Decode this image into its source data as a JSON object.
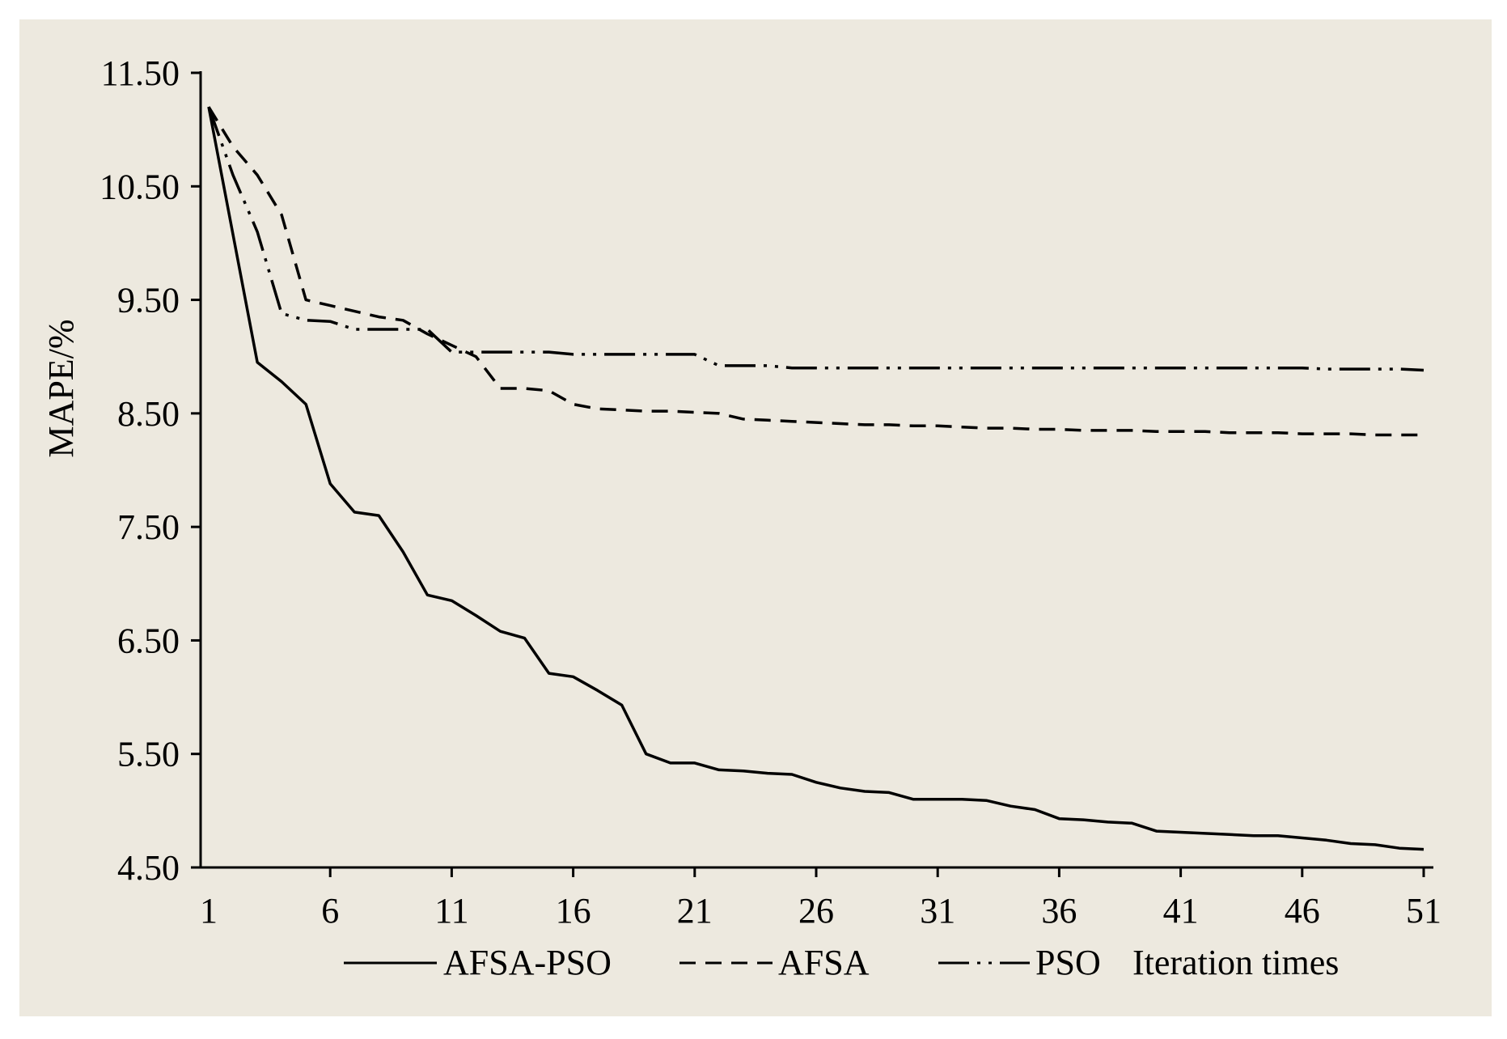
{
  "chart_data": {
    "type": "line",
    "title": "",
    "xlabel": "Iteration times",
    "ylabel": "MAPE/%",
    "ylim": [
      4.5,
      11.5
    ],
    "xlim": [
      1,
      51
    ],
    "yticks": [
      "4.50",
      "5.50",
      "6.50",
      "7.50",
      "8.50",
      "9.50",
      "10.50",
      "11.50"
    ],
    "xticks": [
      "1",
      "6",
      "11",
      "16",
      "21",
      "26",
      "31",
      "36",
      "41",
      "46",
      "51"
    ],
    "grid": false,
    "legend_position": "bottom",
    "series": [
      {
        "name": "AFSA-PSO",
        "style": "solid",
        "x": [
          1,
          3,
          4,
          5,
          6,
          7,
          8,
          9,
          10,
          11,
          12,
          13,
          14,
          15,
          16,
          17,
          18,
          19,
          20,
          21,
          22,
          23,
          24,
          25,
          26,
          27,
          28,
          29,
          30,
          31,
          32,
          33,
          34,
          35,
          36,
          37,
          38,
          39,
          40,
          41,
          42,
          43,
          44,
          45,
          46,
          47,
          48,
          49,
          50,
          51
        ],
        "values": [
          11.2,
          8.95,
          8.78,
          8.58,
          7.88,
          7.63,
          7.6,
          7.28,
          6.9,
          6.85,
          6.72,
          6.58,
          6.52,
          6.21,
          6.18,
          6.06,
          5.93,
          5.5,
          5.42,
          5.42,
          5.36,
          5.35,
          5.33,
          5.32,
          5.25,
          5.2,
          5.17,
          5.16,
          5.1,
          5.1,
          5.1,
          5.09,
          5.04,
          5.01,
          4.93,
          4.92,
          4.9,
          4.89,
          4.82,
          4.81,
          4.8,
          4.79,
          4.78,
          4.78,
          4.76,
          4.74,
          4.71,
          4.7,
          4.67,
          4.66
        ]
      },
      {
        "name": "AFSA",
        "style": "dashed",
        "x": [
          1,
          2,
          3,
          4,
          5,
          6,
          7,
          8,
          9,
          10,
          11,
          12,
          13,
          14,
          15,
          16,
          17,
          18,
          19,
          20,
          21,
          22,
          23,
          24,
          25,
          26,
          27,
          28,
          29,
          30,
          31,
          32,
          33,
          34,
          35,
          36,
          37,
          38,
          39,
          40,
          41,
          42,
          43,
          44,
          45,
          46,
          47,
          48,
          49,
          50,
          51
        ],
        "values": [
          11.2,
          10.85,
          10.6,
          10.25,
          9.5,
          9.45,
          9.4,
          9.35,
          9.32,
          9.2,
          9.1,
          9.0,
          8.72,
          8.72,
          8.7,
          8.58,
          8.54,
          8.53,
          8.52,
          8.52,
          8.51,
          8.5,
          8.45,
          8.44,
          8.43,
          8.42,
          8.41,
          8.4,
          8.4,
          8.39,
          8.39,
          8.38,
          8.37,
          8.37,
          8.36,
          8.36,
          8.35,
          8.35,
          8.35,
          8.34,
          8.34,
          8.34,
          8.33,
          8.33,
          8.33,
          8.32,
          8.32,
          8.32,
          8.31,
          8.31,
          8.31
        ]
      },
      {
        "name": "PSO",
        "style": "dash-dot",
        "x": [
          1,
          2,
          3,
          4,
          5,
          6,
          7,
          8,
          9,
          10,
          11,
          12,
          13,
          14,
          15,
          16,
          17,
          18,
          19,
          20,
          21,
          22,
          23,
          24,
          25,
          26,
          27,
          28,
          29,
          30,
          31,
          32,
          33,
          34,
          35,
          36,
          37,
          38,
          39,
          40,
          41,
          42,
          43,
          44,
          45,
          46,
          47,
          48,
          49,
          50,
          51
        ],
        "values": [
          11.2,
          10.6,
          10.1,
          9.38,
          9.32,
          9.31,
          9.24,
          9.24,
          9.24,
          9.24,
          9.04,
          9.04,
          9.04,
          9.04,
          9.04,
          9.02,
          9.02,
          9.02,
          9.02,
          9.02,
          9.02,
          8.92,
          8.92,
          8.92,
          8.9,
          8.9,
          8.9,
          8.9,
          8.9,
          8.9,
          8.9,
          8.9,
          8.9,
          8.9,
          8.9,
          8.9,
          8.9,
          8.9,
          8.9,
          8.9,
          8.9,
          8.9,
          8.9,
          8.9,
          8.9,
          8.9,
          8.89,
          8.89,
          8.89,
          8.89,
          8.88
        ]
      }
    ]
  },
  "colors": {
    "background": "#ede9df",
    "line": "#000000"
  }
}
